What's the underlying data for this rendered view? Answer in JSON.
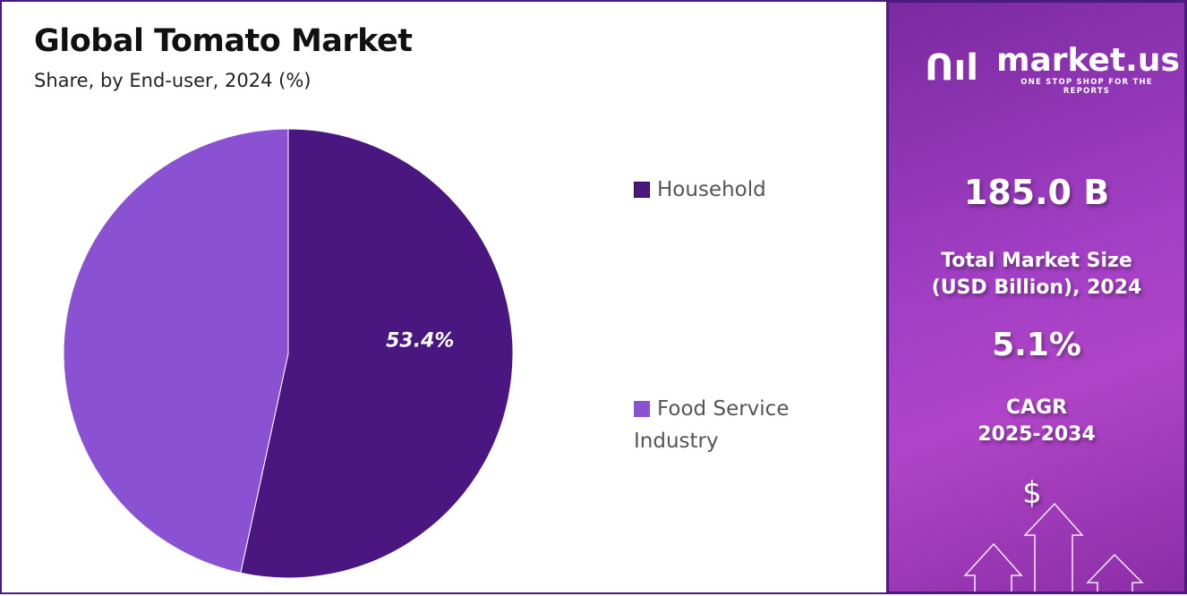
{
  "chart_data": {
    "type": "pie",
    "title": "Global Tomato Market",
    "subtitle": "Share, by End-user, 2024 (%)",
    "categories": [
      "Household",
      "Food Service Industry"
    ],
    "values": [
      53.4,
      46.6
    ],
    "data_labels": [
      "53.4%",
      ""
    ],
    "colors": [
      "#4a1680",
      "#8a52d2"
    ],
    "legend_placement": "right"
  },
  "legend": {
    "items": [
      {
        "label": "Household",
        "color": "#4a1680"
      },
      {
        "label": "Food Service",
        "label2": "Industry",
        "color": "#8a52d2"
      }
    ]
  },
  "sidebar": {
    "brand": "market.us",
    "tagline": "ONE STOP SHOP FOR THE REPORTS",
    "market_size": "185.0 B",
    "market_size_label1": "Total Market Size",
    "market_size_label2": "(USD Billion), 2024",
    "cagr": "5.1%",
    "cagr_label1": "CAGR",
    "cagr_label2": "2025-2034",
    "dollar": "$"
  }
}
